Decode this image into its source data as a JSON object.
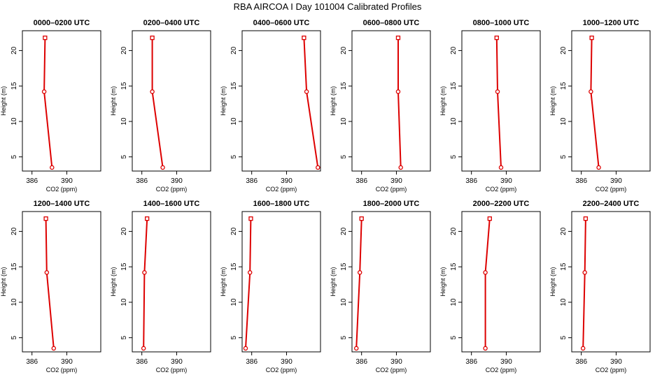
{
  "figure": {
    "title": "RBA AIRCOA I  Day 101004  Calibrated Profiles"
  },
  "colors": {
    "series": "#dd0000",
    "axes": "#000000",
    "background": "#ffffff"
  },
  "chart_data": [
    {
      "type": "line",
      "title": "0000–0200 UTC",
      "xlabel": "CO2 (ppm)",
      "ylabel": "Height (m)",
      "xlim": [
        384.9,
        393.9
      ],
      "ylim": [
        3.0,
        22.8
      ],
      "xticks": [
        386,
        390
      ],
      "yticks": [
        5,
        10,
        15,
        20
      ],
      "grid": false,
      "series": [
        {
          "x": [
            387.5,
            387.4,
            388.3
          ],
          "y": [
            21.8,
            14.2,
            3.5
          ]
        }
      ]
    },
    {
      "type": "line",
      "title": "0200–0400 UTC",
      "xlabel": "CO2 (ppm)",
      "ylabel": "Height (m)",
      "xlim": [
        384.9,
        393.9
      ],
      "ylim": [
        3.0,
        22.8
      ],
      "xticks": [
        386,
        390
      ],
      "yticks": [
        5,
        10,
        15,
        20
      ],
      "grid": false,
      "series": [
        {
          "x": [
            387.2,
            387.2,
            388.4
          ],
          "y": [
            21.8,
            14.2,
            3.5
          ]
        }
      ]
    },
    {
      "type": "line",
      "title": "0400–0600 UTC",
      "xlabel": "CO2 (ppm)",
      "ylabel": "Height (m)",
      "xlim": [
        384.9,
        393.9
      ],
      "ylim": [
        3.0,
        22.8
      ],
      "xticks": [
        386,
        390
      ],
      "yticks": [
        5,
        10,
        15,
        20
      ],
      "grid": false,
      "series": [
        {
          "x": [
            392.0,
            392.3,
            393.6
          ],
          "y": [
            21.8,
            14.2,
            3.5
          ]
        }
      ]
    },
    {
      "type": "line",
      "title": "0600–0800 UTC",
      "xlabel": "CO2 (ppm)",
      "ylabel": "Height (m)",
      "xlim": [
        384.9,
        393.9
      ],
      "ylim": [
        3.0,
        22.8
      ],
      "xticks": [
        386,
        390
      ],
      "yticks": [
        5,
        10,
        15,
        20
      ],
      "grid": false,
      "series": [
        {
          "x": [
            390.2,
            390.2,
            390.5
          ],
          "y": [
            21.8,
            14.2,
            3.5
          ]
        }
      ]
    },
    {
      "type": "line",
      "title": "0800–1000 UTC",
      "xlabel": "CO2 (ppm)",
      "ylabel": "Height (m)",
      "xlim": [
        384.9,
        393.9
      ],
      "ylim": [
        3.0,
        22.8
      ],
      "xticks": [
        386,
        390
      ],
      "yticks": [
        5,
        10,
        15,
        20
      ],
      "grid": false,
      "series": [
        {
          "x": [
            388.9,
            389.0,
            389.4
          ],
          "y": [
            21.8,
            14.2,
            3.5
          ]
        }
      ]
    },
    {
      "type": "line",
      "title": "1000–1200 UTC",
      "xlabel": "CO2 (ppm)",
      "ylabel": "Height (m)",
      "xlim": [
        384.9,
        393.9
      ],
      "ylim": [
        3.0,
        22.8
      ],
      "xticks": [
        386,
        390
      ],
      "yticks": [
        5,
        10,
        15,
        20
      ],
      "grid": false,
      "series": [
        {
          "x": [
            387.2,
            387.1,
            388.0
          ],
          "y": [
            21.8,
            14.2,
            3.5
          ]
        }
      ]
    },
    {
      "type": "line",
      "title": "1200–1400 UTC",
      "xlabel": "CO2 (ppm)",
      "ylabel": "Height (m)",
      "xlim": [
        384.9,
        393.9
      ],
      "ylim": [
        3.0,
        22.8
      ],
      "xticks": [
        386,
        390
      ],
      "yticks": [
        5,
        10,
        15,
        20
      ],
      "grid": false,
      "series": [
        {
          "x": [
            387.6,
            387.7,
            388.5
          ],
          "y": [
            21.8,
            14.2,
            3.5
          ]
        }
      ]
    },
    {
      "type": "line",
      "title": "1400–1600 UTC",
      "xlabel": "CO2 (ppm)",
      "ylabel": "Height (m)",
      "xlim": [
        384.9,
        393.9
      ],
      "ylim": [
        3.0,
        22.8
      ],
      "xticks": [
        386,
        390
      ],
      "yticks": [
        5,
        10,
        15,
        20
      ],
      "grid": false,
      "series": [
        {
          "x": [
            386.6,
            386.3,
            386.2
          ],
          "y": [
            21.8,
            14.2,
            3.5
          ]
        }
      ]
    },
    {
      "type": "line",
      "title": "1600–1800 UTC",
      "xlabel": "CO2 (ppm)",
      "ylabel": "Height (m)",
      "xlim": [
        384.9,
        393.9
      ],
      "ylim": [
        3.0,
        22.8
      ],
      "xticks": [
        386,
        390
      ],
      "yticks": [
        5,
        10,
        15,
        20
      ],
      "grid": false,
      "series": [
        {
          "x": [
            385.9,
            385.8,
            385.3
          ],
          "y": [
            21.8,
            14.2,
            3.5
          ]
        }
      ]
    },
    {
      "type": "line",
      "title": "1800–2000 UTC",
      "xlabel": "CO2 (ppm)",
      "ylabel": "Height (m)",
      "xlim": [
        384.9,
        393.9
      ],
      "ylim": [
        3.0,
        22.8
      ],
      "xticks": [
        386,
        390
      ],
      "yticks": [
        5,
        10,
        15,
        20
      ],
      "grid": false,
      "series": [
        {
          "x": [
            386.0,
            385.8,
            385.4
          ],
          "y": [
            21.8,
            14.2,
            3.5
          ]
        }
      ]
    },
    {
      "type": "line",
      "title": "2000–2200 UTC",
      "xlabel": "CO2 (ppm)",
      "ylabel": "Height (m)",
      "xlim": [
        384.9,
        393.9
      ],
      "ylim": [
        3.0,
        22.8
      ],
      "xticks": [
        386,
        390
      ],
      "yticks": [
        5,
        10,
        15,
        20
      ],
      "grid": false,
      "series": [
        {
          "x": [
            388.1,
            387.6,
            387.6
          ],
          "y": [
            21.8,
            14.2,
            3.5
          ]
        }
      ]
    },
    {
      "type": "line",
      "title": "2200–2400 UTC",
      "xlabel": "CO2 (ppm)",
      "ylabel": "Height (m)",
      "xlim": [
        384.9,
        393.9
      ],
      "ylim": [
        3.0,
        22.8
      ],
      "xticks": [
        386,
        390
      ],
      "yticks": [
        5,
        10,
        15,
        20
      ],
      "grid": false,
      "series": [
        {
          "x": [
            386.5,
            386.4,
            386.2
          ],
          "y": [
            21.8,
            14.2,
            3.5
          ]
        }
      ]
    }
  ]
}
